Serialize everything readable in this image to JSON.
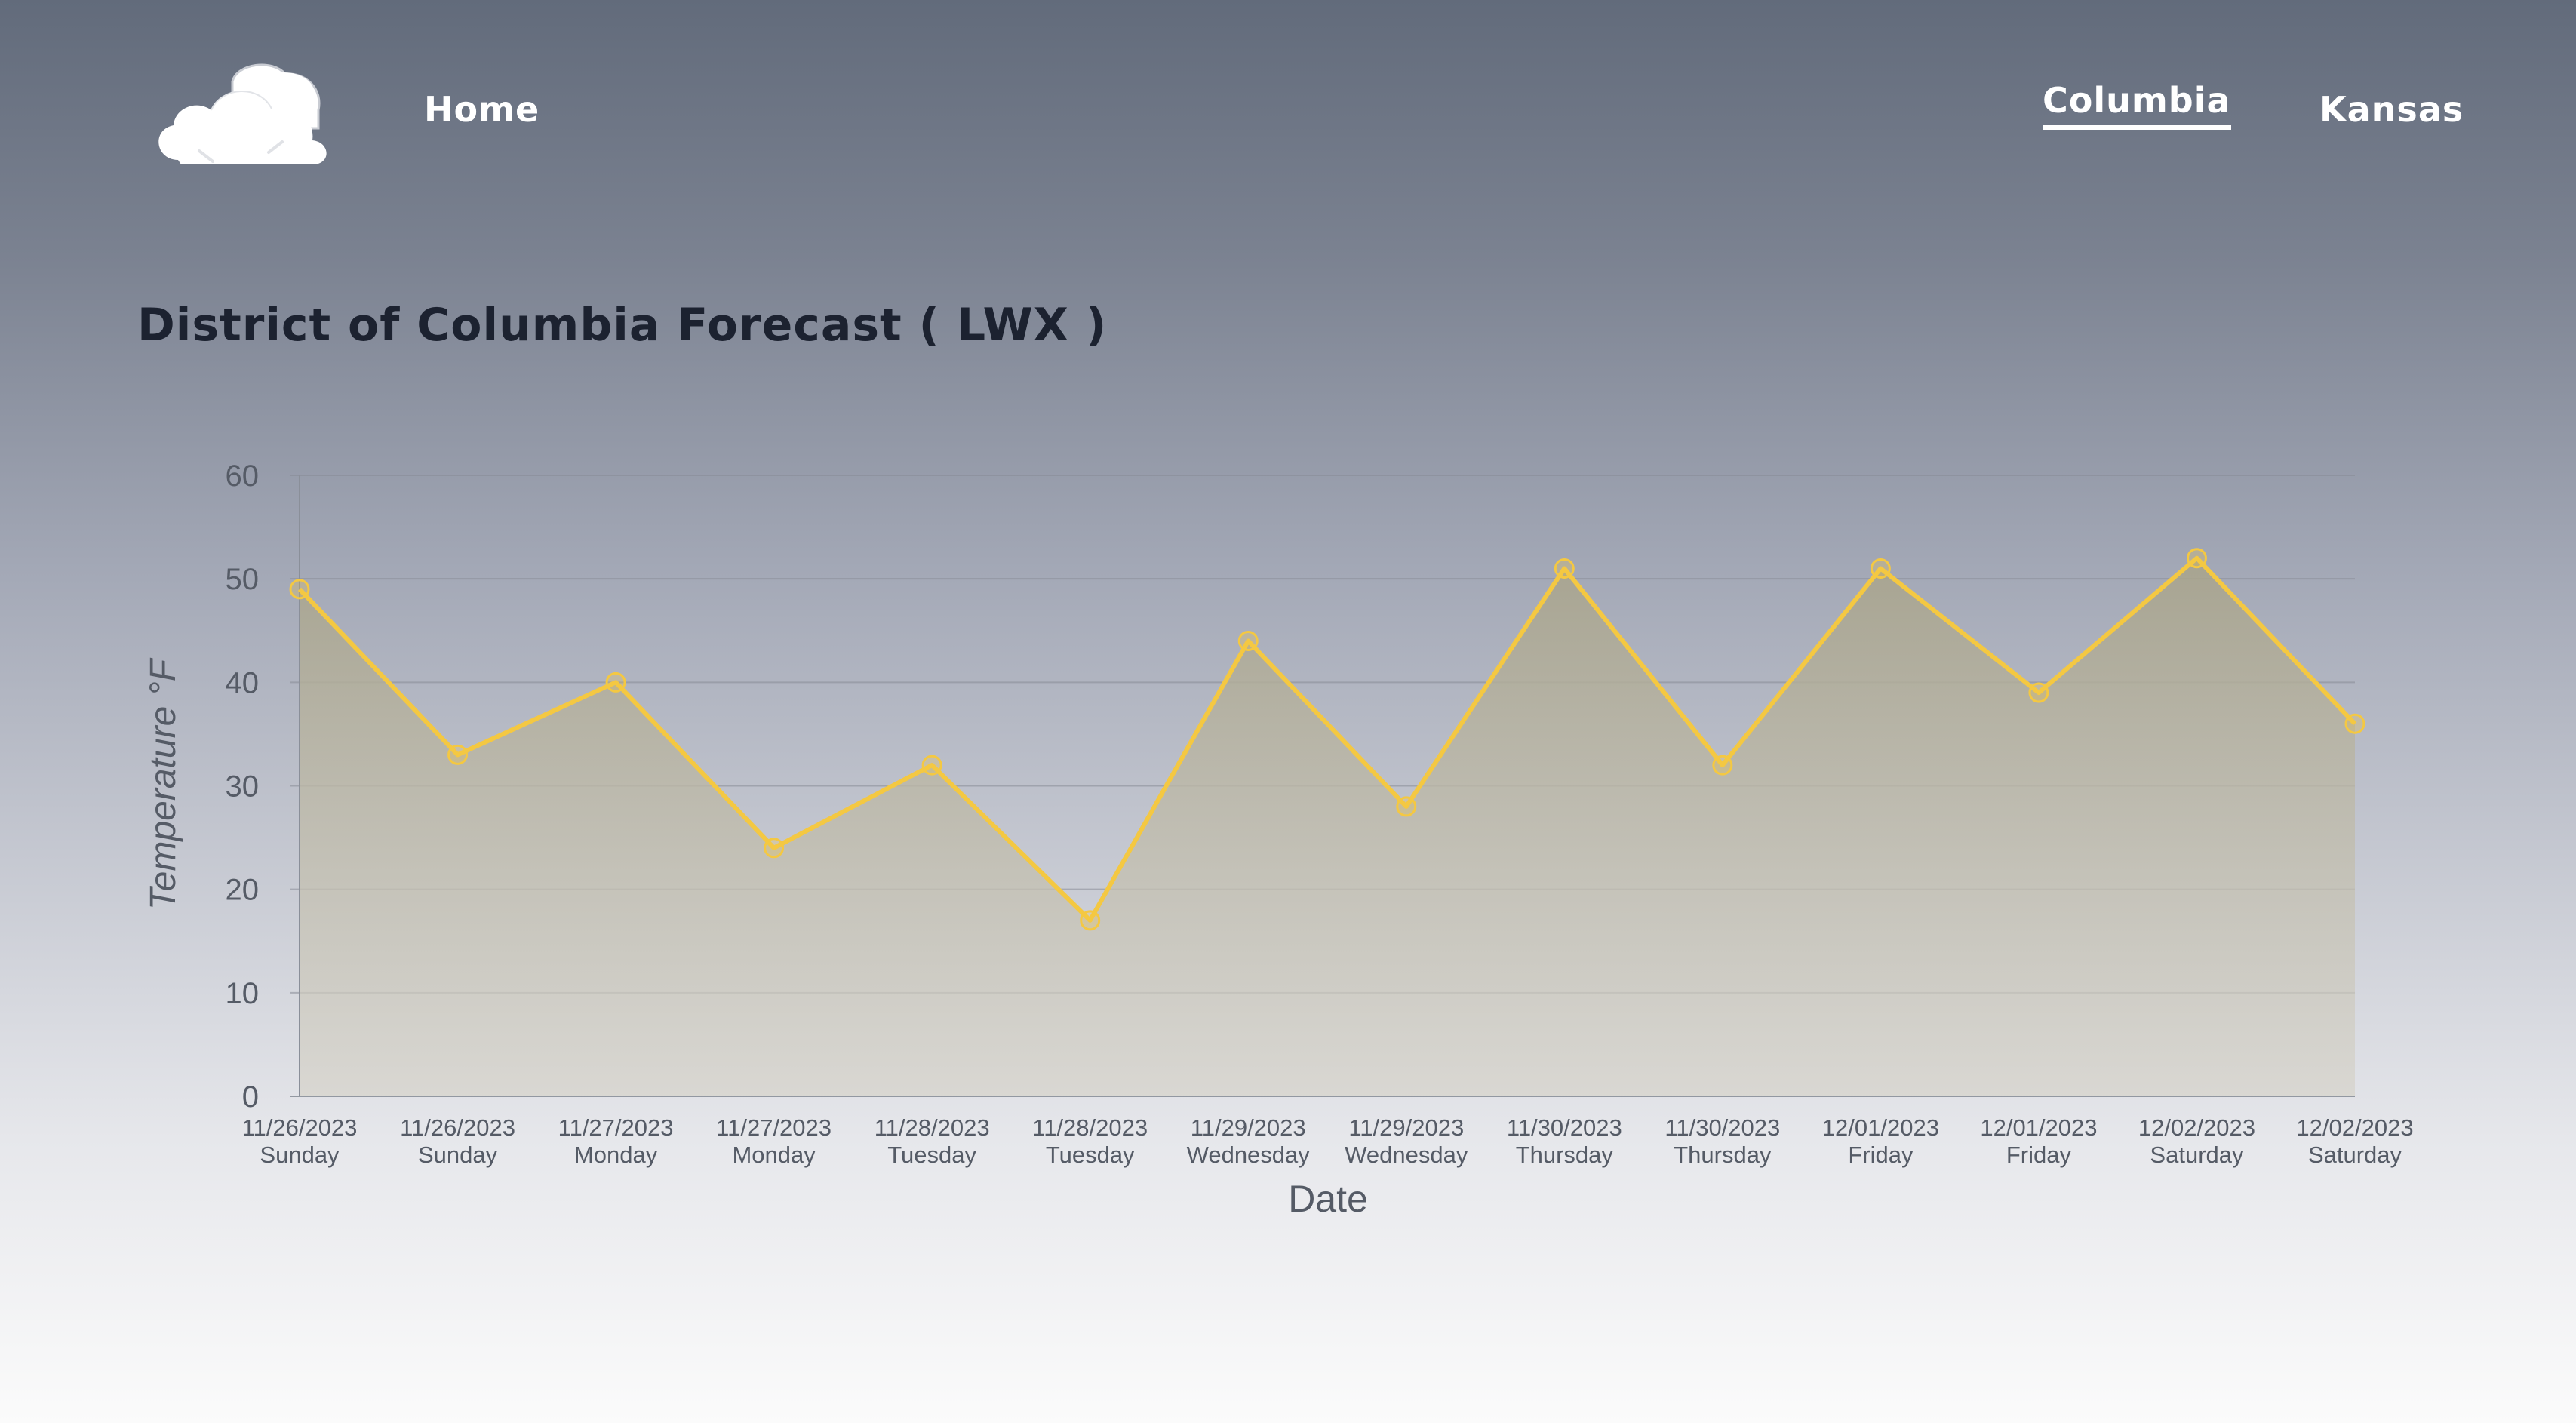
{
  "header": {
    "nav": {
      "home_label": "Home",
      "columbia_label": "Columbia",
      "kansas_label": "Kansas"
    },
    "active_tab": "Columbia",
    "logo_icon": "cloud-icon"
  },
  "main": {
    "title": "District of Columbia Forecast ( LWX )"
  },
  "colors": {
    "line": "#f4c842",
    "axis_text": "#555b66",
    "title_text": "#1c2230",
    "nav_text": "#ffffff"
  },
  "chart_data": {
    "type": "area",
    "xlabel": "Date",
    "ylabel": "Temperature °F",
    "ylim": [
      0,
      60
    ],
    "yticks": [
      0,
      10,
      20,
      30,
      40,
      50,
      60
    ],
    "grid": true,
    "legend": "none",
    "categories": [
      [
        "11/26/2023",
        "Sunday"
      ],
      [
        "11/26/2023",
        "Sunday"
      ],
      [
        "11/27/2023",
        "Monday"
      ],
      [
        "11/27/2023",
        "Monday"
      ],
      [
        "11/28/2023",
        "Tuesday"
      ],
      [
        "11/28/2023",
        "Tuesday"
      ],
      [
        "11/29/2023",
        "Wednesday"
      ],
      [
        "11/29/2023",
        "Wednesday"
      ],
      [
        "11/30/2023",
        "Thursday"
      ],
      [
        "11/30/2023",
        "Thursday"
      ],
      [
        "12/01/2023",
        "Friday"
      ],
      [
        "12/01/2023",
        "Friday"
      ],
      [
        "12/02/2023",
        "Saturday"
      ],
      [
        "12/02/2023",
        "Saturday"
      ]
    ],
    "series": [
      {
        "values": [
          49,
          33,
          40,
          24,
          32,
          17,
          44,
          28,
          51,
          32,
          51,
          39,
          52,
          36
        ]
      }
    ]
  }
}
